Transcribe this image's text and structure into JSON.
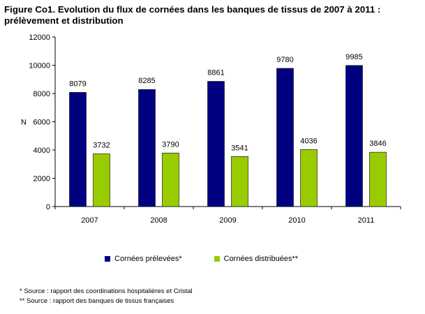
{
  "title_line1": "Figure Co1. Evolution du flux de cornées dans les banques de tissus de 2007 à 2011 :",
  "title_line2": "prélèvement et distribution",
  "footnotes": [
    "* Source : rapport des coordinations hospitalières et Cristal",
    "** Source : rapport des banques de tissus françaises"
  ],
  "chart_data": {
    "type": "bar",
    "categories": [
      "2007",
      "2008",
      "2009",
      "2010",
      "2011"
    ],
    "series": [
      {
        "name": "Cornées prélevées*",
        "values": [
          8079,
          8285,
          8861,
          9780,
          9985
        ],
        "color": "#000080"
      },
      {
        "name": "Cornées distribuées**",
        "values": [
          3732,
          3790,
          3541,
          4036,
          3846
        ],
        "color": "#99CC00"
      }
    ],
    "ylabel": "N",
    "ylim": [
      0,
      12000
    ],
    "yticks": [
      "0",
      "2000",
      "4000",
      "6000",
      "8000",
      "10000",
      "12000"
    ],
    "grid": false,
    "legend_position": "bottom"
  }
}
